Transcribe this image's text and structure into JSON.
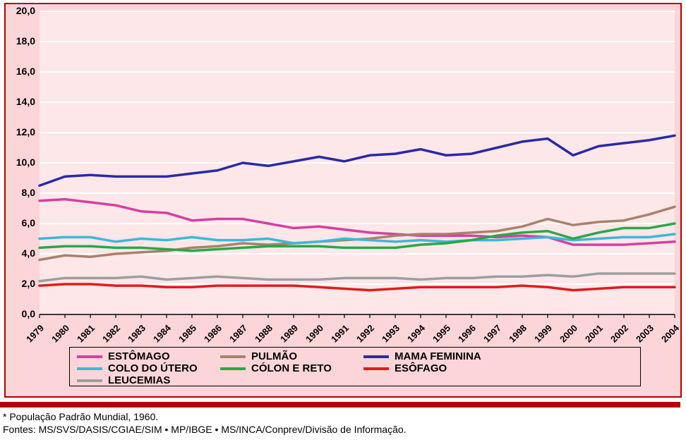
{
  "chart": {
    "type": "line",
    "background_color": "#fde7e9",
    "card_background": "#fcd5d8",
    "border_color": "#b40000",
    "grid_color": "#ffffff",
    "axis_font_size": 14,
    "axis_font_weight": 700,
    "years": [
      "1979",
      "1980",
      "1981",
      "1982",
      "1983",
      "1984",
      "1985",
      "1986",
      "1987",
      "1988",
      "1989",
      "1990",
      "1991",
      "1992",
      "1993",
      "1994",
      "1995",
      "1996",
      "1997",
      "1998",
      "1999",
      "2000",
      "2001",
      "2002",
      "2003",
      "2004"
    ],
    "ylim": [
      0,
      20
    ],
    "ytick_step": 2,
    "y_decimal_comma": true,
    "line_width": 3.5,
    "series": [
      {
        "name": "ESTÔMAGO",
        "color": "#d63fa1",
        "values": [
          7.5,
          7.6,
          7.4,
          7.2,
          6.8,
          6.7,
          6.2,
          6.3,
          6.3,
          6.0,
          5.7,
          5.8,
          5.6,
          5.4,
          5.3,
          5.2,
          5.2,
          5.2,
          5.1,
          5.2,
          5.1,
          4.6,
          4.6,
          4.6,
          4.7,
          4.8
        ]
      },
      {
        "name": "PULMÃO",
        "color": "#a8826a",
        "values": [
          3.6,
          3.9,
          3.8,
          4.0,
          4.1,
          4.2,
          4.4,
          4.5,
          4.7,
          4.6,
          4.7,
          4.8,
          4.9,
          5.0,
          5.2,
          5.3,
          5.3,
          5.4,
          5.5,
          5.8,
          6.3,
          5.9,
          6.1,
          6.2,
          6.6,
          7.1
        ]
      },
      {
        "name": "MAMA FEMININA",
        "color": "#2a2aa6",
        "values": [
          8.5,
          9.1,
          9.2,
          9.1,
          9.1,
          9.1,
          9.3,
          9.5,
          10.0,
          9.8,
          10.1,
          10.4,
          10.1,
          10.5,
          10.6,
          10.9,
          10.5,
          10.6,
          11.0,
          11.4,
          11.6,
          10.5,
          11.1,
          11.3,
          11.5,
          11.8
        ]
      },
      {
        "name": "COLO DO ÚTERO",
        "color": "#3bb8d9",
        "values": [
          5.0,
          5.1,
          5.1,
          4.8,
          5.0,
          4.9,
          5.1,
          4.9,
          4.9,
          5.0,
          4.7,
          4.8,
          5.0,
          4.9,
          4.8,
          4.9,
          4.8,
          4.9,
          4.9,
          5.0,
          5.1,
          4.9,
          5.0,
          5.1,
          5.1,
          5.3
        ]
      },
      {
        "name": "CÓLON E RETO",
        "color": "#2aa847",
        "values": [
          4.4,
          4.5,
          4.5,
          4.4,
          4.4,
          4.3,
          4.2,
          4.3,
          4.4,
          4.5,
          4.5,
          4.5,
          4.4,
          4.4,
          4.4,
          4.6,
          4.7,
          4.9,
          5.2,
          5.4,
          5.5,
          5.0,
          5.4,
          5.7,
          5.7,
          6.0
        ]
      },
      {
        "name": "ESÔFAGO",
        "color": "#e01c1c",
        "values": [
          1.9,
          2.0,
          2.0,
          1.9,
          1.9,
          1.8,
          1.8,
          1.9,
          1.9,
          1.9,
          1.9,
          1.8,
          1.7,
          1.6,
          1.7,
          1.8,
          1.8,
          1.8,
          1.8,
          1.9,
          1.8,
          1.6,
          1.7,
          1.8,
          1.8,
          1.8
        ]
      },
      {
        "name": "LEUCEMIAS",
        "color": "#9e9e9e",
        "values": [
          2.2,
          2.4,
          2.4,
          2.4,
          2.5,
          2.3,
          2.4,
          2.5,
          2.4,
          2.3,
          2.3,
          2.3,
          2.4,
          2.4,
          2.4,
          2.3,
          2.4,
          2.4,
          2.5,
          2.5,
          2.6,
          2.5,
          2.7,
          2.7,
          2.7,
          2.7
        ]
      }
    ]
  },
  "footnote1": "* População Padrão Mundial, 1960.",
  "footnote2": "Fontes: MS/SVS/DASIS/CGIAE/SIM • MP/IBGE • MS/INCA/Conprev/Divisão de Informação."
}
